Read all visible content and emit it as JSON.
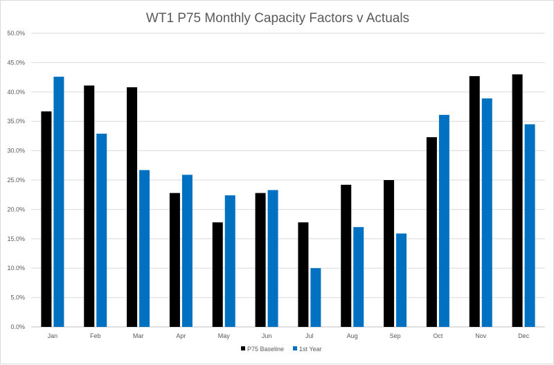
{
  "chart_data": {
    "type": "bar",
    "title": "WT1 P75 Monthly Capacity Factors v Actuals",
    "categories": [
      "Jan",
      "Feb",
      "Mar",
      "Apr",
      "May",
      "Jun",
      "Jul",
      "Aug",
      "Sep",
      "Oct",
      "Nov",
      "Dec"
    ],
    "series": [
      {
        "name": "P75 Baseline",
        "color": "#000000",
        "values": [
          36.7,
          41.1,
          40.8,
          22.8,
          17.8,
          22.8,
          17.8,
          24.2,
          25.0,
          32.3,
          42.7,
          43.0
        ]
      },
      {
        "name": "1st Year",
        "color": "#0070C0",
        "values": [
          42.6,
          32.9,
          26.7,
          25.9,
          22.4,
          23.3,
          10.0,
          17.0,
          15.9,
          36.1,
          38.9,
          34.5
        ]
      }
    ],
    "ylim": [
      0,
      50
    ],
    "y_ticks": [
      "0.0%",
      "5.0%",
      "10.0%",
      "15.0%",
      "20.0%",
      "25.0%",
      "30.0%",
      "35.0%",
      "40.0%",
      "45.0%",
      "50.0%"
    ],
    "grid": true,
    "gridline_color": "#d9d9d9",
    "legend_position": "bottom"
  }
}
